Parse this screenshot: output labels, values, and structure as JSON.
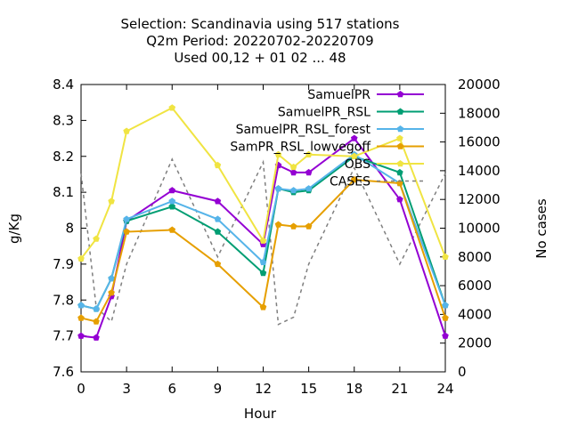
{
  "chart_data": {
    "type": "line",
    "title_lines": [
      "Selection: Scandinavia using   517 stations",
      "Q2m   Period: 20220702-20220709",
      "Used  00,12  + 01 02 ... 48"
    ],
    "xlabel": "Hour",
    "ylabel": "g/Kg",
    "y2label": "No cases",
    "xlim": [
      0,
      24
    ],
    "ylim": [
      7.6,
      8.4
    ],
    "y2lim": [
      0,
      20000
    ],
    "xticks": [
      0,
      3,
      6,
      9,
      12,
      15,
      18,
      21,
      24
    ],
    "yticks": [
      7.6,
      7.7,
      7.8,
      7.9,
      8.0,
      8.1,
      8.2,
      8.3,
      8.4
    ],
    "ytick_labels": [
      "7.6",
      "7.7",
      "7.8",
      "7.9",
      "8",
      "8.1",
      "8.2",
      "8.3",
      "8.4"
    ],
    "y2ticks": [
      0,
      2000,
      4000,
      6000,
      8000,
      10000,
      12000,
      14000,
      16000,
      18000,
      20000
    ],
    "legend_position": "top-right",
    "grid": false,
    "series": [
      {
        "name": "SamuelPR",
        "color": "#9400d3",
        "marker": "pentagon",
        "x": [
          0,
          1,
          2,
          3,
          6,
          9,
          12,
          13,
          14,
          15,
          18,
          21,
          24
        ],
        "y": [
          7.7,
          7.695,
          7.81,
          8.02,
          8.105,
          8.075,
          7.955,
          8.175,
          8.155,
          8.155,
          8.25,
          8.08,
          7.7
        ]
      },
      {
        "name": "SamuelPR_RSL",
        "color": "#009e73",
        "marker": "pentagon",
        "x": [
          0,
          1,
          2,
          3,
          6,
          9,
          12,
          13,
          14,
          15,
          18,
          21,
          24
        ],
        "y": [
          7.785,
          7.775,
          7.86,
          8.02,
          8.06,
          7.99,
          7.875,
          8.11,
          8.1,
          8.105,
          8.2,
          8.155,
          7.785
        ]
      },
      {
        "name": "SamuelPR_RSL_forest",
        "color": "#56b4e9",
        "marker": "pentagon",
        "x": [
          0,
          1,
          2,
          3,
          6,
          9,
          12,
          13,
          14,
          15,
          18,
          21,
          24
        ],
        "y": [
          7.785,
          7.775,
          7.86,
          8.025,
          8.075,
          8.025,
          7.905,
          8.11,
          8.105,
          8.11,
          8.205,
          8.125,
          7.785
        ]
      },
      {
        "name": "SamPR_RSL_lowvegoff",
        "color": "#e69f00",
        "marker": "pentagon",
        "x": [
          0,
          1,
          2,
          3,
          6,
          9,
          12,
          13,
          14,
          15,
          18,
          21,
          24
        ],
        "y": [
          7.75,
          7.74,
          7.82,
          7.99,
          7.995,
          7.9,
          7.78,
          8.01,
          8.005,
          8.005,
          8.135,
          8.125,
          7.75
        ]
      },
      {
        "name": "OBS",
        "color": "#f0e442",
        "marker": "pentagon",
        "x": [
          0,
          1,
          2,
          3,
          6,
          9,
          12,
          13,
          14,
          15,
          18,
          21,
          24
        ],
        "y": [
          7.915,
          7.97,
          8.075,
          8.27,
          8.335,
          8.175,
          7.965,
          8.205,
          8.17,
          8.205,
          8.2,
          8.25,
          7.92
        ]
      }
    ],
    "cases": {
      "name": "CASES",
      "color": "#7f7f7f",
      "axis": "y2",
      "x": [
        0,
        1,
        2,
        3,
        6,
        9,
        12,
        13,
        14,
        15,
        18,
        21,
        24
      ],
      "y": [
        13800,
        4500,
        3500,
        7500,
        14800,
        8000,
        14600,
        3300,
        3800,
        7500,
        14200,
        7500,
        13800
      ]
    }
  }
}
